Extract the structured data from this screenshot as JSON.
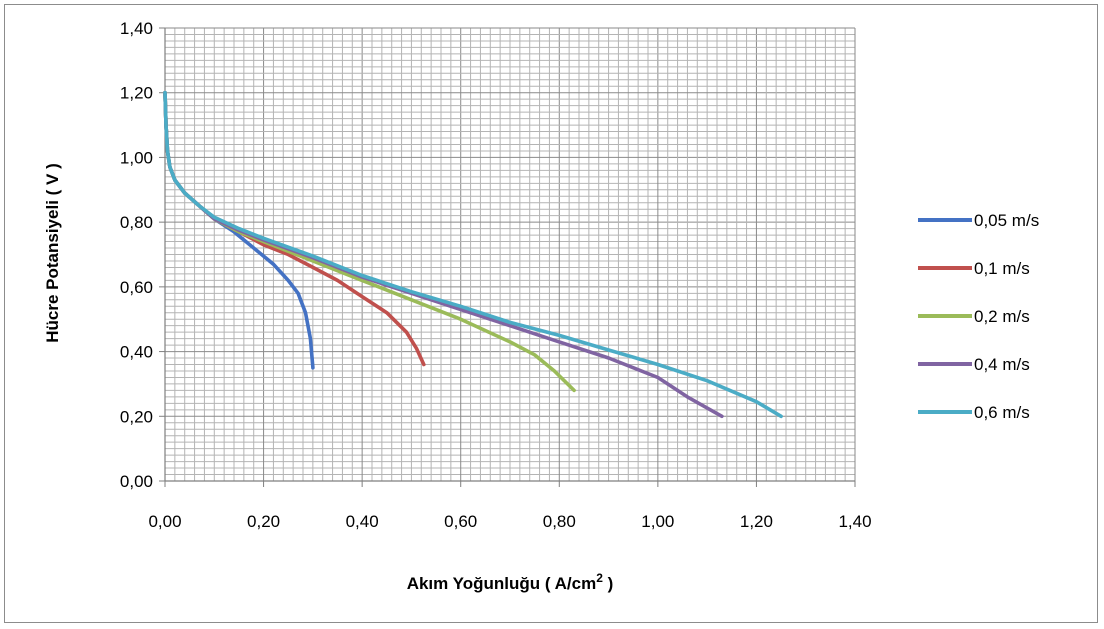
{
  "chart_data": {
    "type": "line",
    "xlabel": "Akım Yoğunluğu ( A/cm",
    "xlabel_sup": "2",
    "xlabel_end": " )",
    "ylabel": "Hücre Potansiyeli ( V )",
    "xlim": [
      0,
      1.4
    ],
    "ylim": [
      0,
      1.4
    ],
    "x_ticks": [
      "0,00",
      "0,20",
      "0,40",
      "0,60",
      "0,80",
      "1,00",
      "1,20",
      "1,40"
    ],
    "y_ticks": [
      "0,00",
      "0,20",
      "0,40",
      "0,60",
      "0,80",
      "1,00",
      "1,20",
      "1,40"
    ],
    "grid": true,
    "legend_position": "right",
    "series": [
      {
        "name": "0,05 m/s",
        "color": "#4472C4",
        "points": [
          [
            0.0,
            1.2
          ],
          [
            0.002,
            1.1
          ],
          [
            0.005,
            1.02
          ],
          [
            0.01,
            0.97
          ],
          [
            0.02,
            0.93
          ],
          [
            0.04,
            0.89
          ],
          [
            0.07,
            0.85
          ],
          [
            0.1,
            0.81
          ],
          [
            0.14,
            0.77
          ],
          [
            0.18,
            0.72
          ],
          [
            0.22,
            0.67
          ],
          [
            0.25,
            0.62
          ],
          [
            0.27,
            0.58
          ],
          [
            0.285,
            0.52
          ],
          [
            0.295,
            0.44
          ],
          [
            0.3,
            0.35
          ]
        ]
      },
      {
        "name": "0,1 m/s",
        "color": "#C0504D",
        "points": [
          [
            0.0,
            1.2
          ],
          [
            0.002,
            1.1
          ],
          [
            0.005,
            1.02
          ],
          [
            0.01,
            0.97
          ],
          [
            0.02,
            0.93
          ],
          [
            0.04,
            0.89
          ],
          [
            0.07,
            0.85
          ],
          [
            0.1,
            0.81
          ],
          [
            0.15,
            0.77
          ],
          [
            0.2,
            0.73
          ],
          [
            0.25,
            0.7
          ],
          [
            0.3,
            0.66
          ],
          [
            0.35,
            0.62
          ],
          [
            0.4,
            0.57
          ],
          [
            0.45,
            0.52
          ],
          [
            0.49,
            0.46
          ],
          [
            0.51,
            0.41
          ],
          [
            0.525,
            0.36
          ]
        ]
      },
      {
        "name": "0,2 m/s",
        "color": "#9BBB59",
        "points": [
          [
            0.0,
            1.2
          ],
          [
            0.002,
            1.1
          ],
          [
            0.005,
            1.02
          ],
          [
            0.01,
            0.97
          ],
          [
            0.02,
            0.93
          ],
          [
            0.04,
            0.89
          ],
          [
            0.07,
            0.85
          ],
          [
            0.1,
            0.81
          ],
          [
            0.15,
            0.77
          ],
          [
            0.2,
            0.74
          ],
          [
            0.3,
            0.68
          ],
          [
            0.4,
            0.62
          ],
          [
            0.5,
            0.56
          ],
          [
            0.6,
            0.5
          ],
          [
            0.7,
            0.43
          ],
          [
            0.75,
            0.39
          ],
          [
            0.79,
            0.34
          ],
          [
            0.83,
            0.28
          ]
        ]
      },
      {
        "name": "0,4 m/s",
        "color": "#8064A2",
        "points": [
          [
            0.0,
            1.2
          ],
          [
            0.002,
            1.1
          ],
          [
            0.005,
            1.02
          ],
          [
            0.01,
            0.97
          ],
          [
            0.02,
            0.93
          ],
          [
            0.04,
            0.89
          ],
          [
            0.07,
            0.85
          ],
          [
            0.1,
            0.81
          ],
          [
            0.15,
            0.775
          ],
          [
            0.2,
            0.745
          ],
          [
            0.3,
            0.69
          ],
          [
            0.4,
            0.63
          ],
          [
            0.5,
            0.58
          ],
          [
            0.6,
            0.53
          ],
          [
            0.7,
            0.48
          ],
          [
            0.8,
            0.43
          ],
          [
            0.9,
            0.38
          ],
          [
            1.0,
            0.32
          ],
          [
            1.06,
            0.26
          ],
          [
            1.13,
            0.2
          ]
        ]
      },
      {
        "name": "0,6 m/s",
        "color": "#4BACC6",
        "points": [
          [
            0.0,
            1.2
          ],
          [
            0.002,
            1.1
          ],
          [
            0.005,
            1.02
          ],
          [
            0.01,
            0.97
          ],
          [
            0.02,
            0.93
          ],
          [
            0.04,
            0.89
          ],
          [
            0.07,
            0.85
          ],
          [
            0.1,
            0.815
          ],
          [
            0.15,
            0.78
          ],
          [
            0.2,
            0.75
          ],
          [
            0.3,
            0.695
          ],
          [
            0.4,
            0.635
          ],
          [
            0.5,
            0.585
          ],
          [
            0.6,
            0.54
          ],
          [
            0.7,
            0.49
          ],
          [
            0.8,
            0.45
          ],
          [
            0.9,
            0.405
          ],
          [
            1.0,
            0.36
          ],
          [
            1.1,
            0.31
          ],
          [
            1.2,
            0.245
          ],
          [
            1.25,
            0.2
          ]
        ]
      }
    ]
  }
}
